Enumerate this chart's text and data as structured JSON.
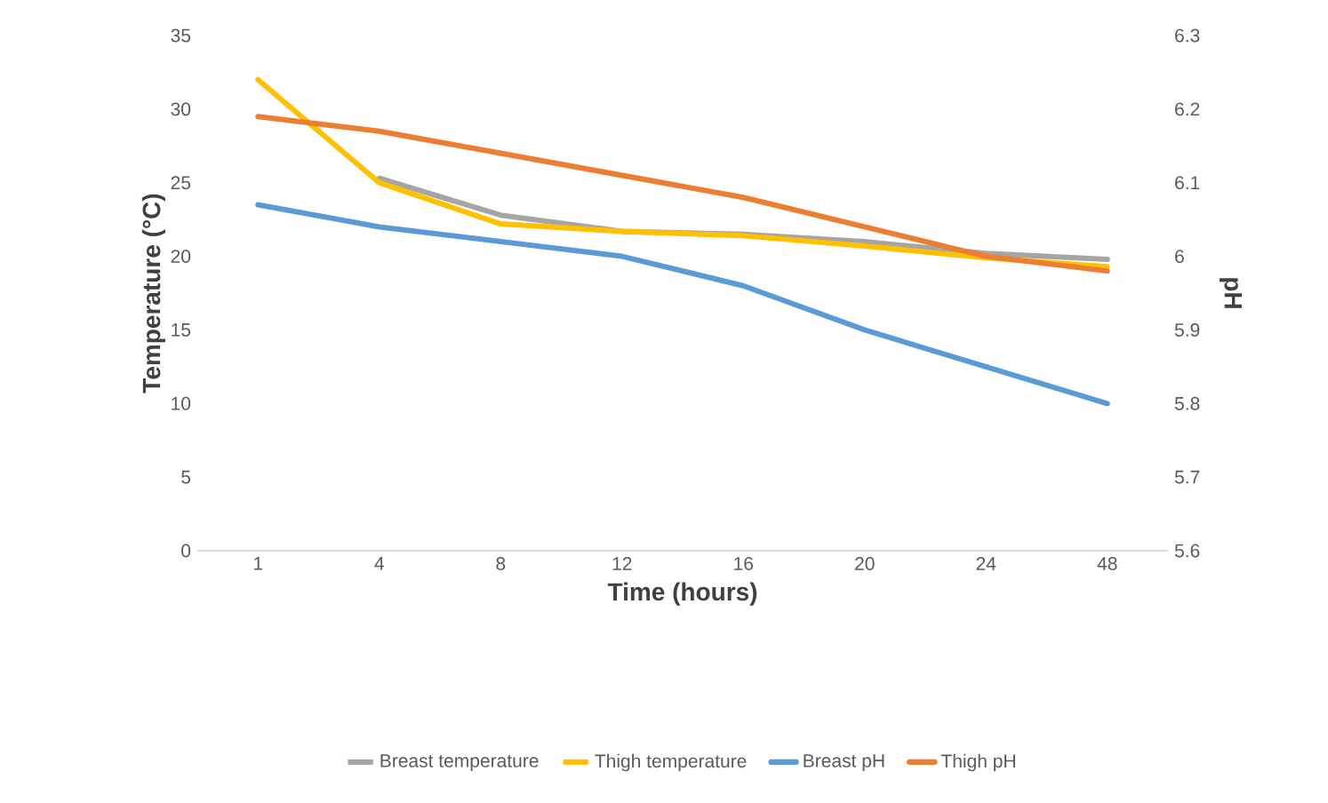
{
  "chart_data": {
    "type": "line",
    "xlabel": "Time (hours)",
    "ylabel": "Temperature (°C)",
    "y2label": "pH",
    "categories": [
      "1",
      "4",
      "8",
      "12",
      "16",
      "20",
      "24",
      "48"
    ],
    "series": [
      {
        "name": "Breast temperature",
        "color": "#a5a5a5",
        "values": [
          null,
          25.3,
          22.8,
          21.7,
          21.5,
          21,
          20.2,
          19.8
        ]
      },
      {
        "name": "Thigh temperature",
        "color": "#ffc000",
        "values": [
          32,
          25,
          22.2,
          21.7,
          21.4,
          20.7,
          19.9,
          19.3
        ]
      },
      {
        "name": "Breast pH",
        "color": "#5b9bd5",
        "axis": "y2",
        "values": [
          6.07,
          6.04,
          6.02,
          6.0,
          5.96,
          5.9,
          5.85,
          5.8
        ]
      },
      {
        "name": "Thigh pH",
        "color": "#ed7d31",
        "axis": "y2",
        "values": [
          6.19,
          6.17,
          6.14,
          6.11,
          6.08,
          6.04,
          6.0,
          5.98
        ]
      }
    ],
    "ylim": [
      0,
      35
    ],
    "yticks": [
      0,
      5,
      10,
      15,
      20,
      25,
      30,
      35
    ],
    "y2lim": [
      5.6,
      6.3
    ],
    "y2ticks": [
      5.6,
      5.7,
      5.8,
      5.9,
      6,
      6.1,
      6.2,
      6.3
    ],
    "legend": "bottom"
  }
}
